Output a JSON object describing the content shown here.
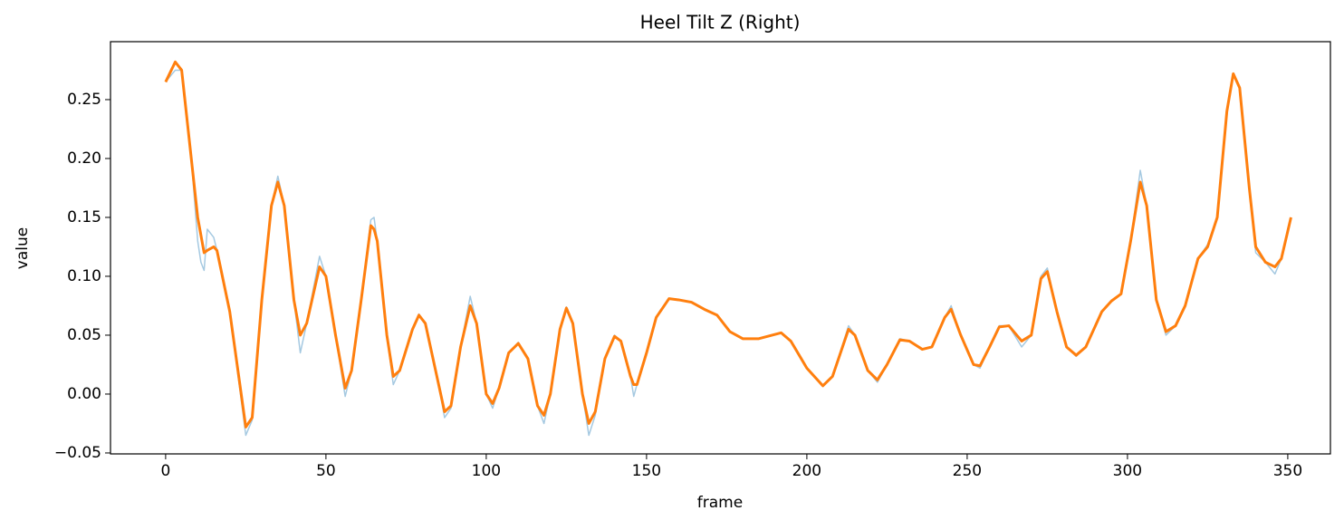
{
  "chart_data": {
    "type": "line",
    "title": "Heel Tilt Z (Right)",
    "xlabel": "frame",
    "ylabel": "value",
    "x": [
      0,
      3,
      5,
      8,
      10,
      11,
      12,
      13,
      15,
      16,
      20,
      25,
      27,
      30,
      33,
      35,
      37,
      40,
      42,
      44,
      48,
      50,
      53,
      56,
      58,
      61,
      64,
      65,
      66,
      69,
      71,
      73,
      77,
      79,
      81,
      85,
      87,
      89,
      92,
      95,
      97,
      100,
      102,
      104,
      107,
      110,
      113,
      116,
      118,
      120,
      123,
      125,
      127,
      130,
      132,
      134,
      137,
      140,
      142,
      145,
      146,
      147,
      150,
      153,
      157,
      160,
      164,
      168,
      172,
      176,
      180,
      185,
      192,
      195,
      200,
      205,
      208,
      213,
      215,
      219,
      222,
      225,
      229,
      232,
      236,
      239,
      243,
      245,
      248,
      252,
      254,
      257,
      260,
      263,
      267,
      270,
      273,
      275,
      278,
      281,
      284,
      287,
      292,
      295,
      298,
      301,
      304,
      306,
      309,
      312,
      315,
      318,
      322,
      325,
      328,
      331,
      333,
      335,
      338,
      340,
      343,
      346,
      348,
      351
    ],
    "series": [
      {
        "color": "#1f77b4",
        "values": [
          0.265,
          0.275,
          0.275,
          0.2,
          0.13,
          0.112,
          0.105,
          0.14,
          0.133,
          0.122,
          0.07,
          -0.035,
          -0.022,
          0.08,
          0.16,
          0.185,
          0.16,
          0.08,
          0.035,
          0.06,
          0.117,
          0.1,
          0.05,
          -0.002,
          0.02,
          0.08,
          0.148,
          0.15,
          0.13,
          0.05,
          0.008,
          0.02,
          0.055,
          0.068,
          0.06,
          0.01,
          -0.02,
          -0.012,
          0.04,
          0.083,
          0.06,
          0.0,
          -0.012,
          0.005,
          0.035,
          0.044,
          0.03,
          -0.01,
          -0.025,
          0.0,
          0.055,
          0.074,
          0.06,
          0.0,
          -0.035,
          -0.018,
          0.03,
          0.05,
          0.045,
          0.015,
          -0.002,
          0.008,
          0.035,
          0.065,
          0.081,
          0.08,
          0.078,
          0.072,
          0.067,
          0.053,
          0.047,
          0.047,
          0.052,
          0.045,
          0.022,
          0.007,
          0.015,
          0.058,
          0.05,
          0.02,
          0.01,
          0.025,
          0.047,
          0.045,
          0.038,
          0.04,
          0.065,
          0.075,
          0.05,
          0.025,
          0.022,
          0.04,
          0.058,
          0.058,
          0.04,
          0.05,
          0.1,
          0.107,
          0.07,
          0.04,
          0.032,
          0.04,
          0.07,
          0.079,
          0.085,
          0.13,
          0.19,
          0.16,
          0.08,
          0.05,
          0.058,
          0.075,
          0.115,
          0.127,
          0.15,
          0.24,
          0.272,
          0.26,
          0.175,
          0.12,
          0.112,
          0.102,
          0.115,
          0.15
        ]
      },
      {
        "color": "#ff7f0e",
        "values": [
          0.265,
          0.282,
          0.275,
          0.2,
          0.15,
          0.135,
          0.12,
          0.122,
          0.125,
          0.122,
          0.07,
          -0.028,
          -0.02,
          0.08,
          0.16,
          0.18,
          0.16,
          0.08,
          0.05,
          0.06,
          0.108,
          0.1,
          0.05,
          0.005,
          0.02,
          0.08,
          0.143,
          0.14,
          0.13,
          0.05,
          0.015,
          0.02,
          0.055,
          0.067,
          0.06,
          0.01,
          -0.015,
          -0.01,
          0.04,
          0.075,
          0.06,
          0.0,
          -0.008,
          0.005,
          0.035,
          0.043,
          0.03,
          -0.01,
          -0.018,
          0.0,
          0.055,
          0.073,
          0.06,
          0.0,
          -0.025,
          -0.015,
          0.03,
          0.049,
          0.045,
          0.015,
          0.008,
          0.008,
          0.035,
          0.065,
          0.081,
          0.08,
          0.078,
          0.072,
          0.067,
          0.053,
          0.047,
          0.047,
          0.052,
          0.045,
          0.022,
          0.007,
          0.015,
          0.055,
          0.05,
          0.02,
          0.012,
          0.025,
          0.046,
          0.045,
          0.038,
          0.04,
          0.065,
          0.072,
          0.05,
          0.025,
          0.024,
          0.04,
          0.057,
          0.058,
          0.045,
          0.05,
          0.098,
          0.104,
          0.07,
          0.04,
          0.033,
          0.04,
          0.07,
          0.079,
          0.085,
          0.13,
          0.18,
          0.16,
          0.08,
          0.053,
          0.058,
          0.075,
          0.115,
          0.125,
          0.15,
          0.24,
          0.272,
          0.26,
          0.175,
          0.125,
          0.112,
          0.108,
          0.115,
          0.15
        ]
      }
    ],
    "xlim": [
      -17.2,
      363.3
    ],
    "ylim": [
      -0.0508,
      0.2992
    ],
    "xticks": [
      0,
      50,
      100,
      150,
      200,
      250,
      300,
      350
    ],
    "yticks": [
      {
        "value": -0.05,
        "label": "−0.05"
      },
      {
        "value": 0,
        "label": "0.00"
      },
      0.05,
      {
        "value": 0.1,
        "label": "0.10"
      },
      0.15,
      {
        "value": 0.2,
        "label": "0.20"
      },
      0.25
    ]
  }
}
